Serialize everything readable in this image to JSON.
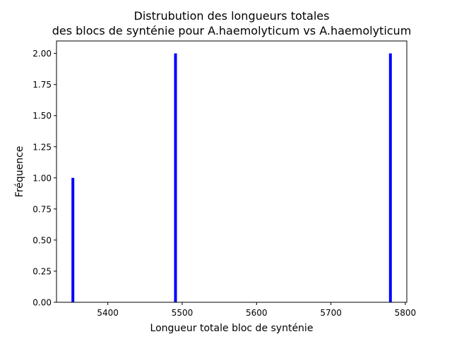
{
  "chart_data": {
    "type": "bar",
    "title_line1": "Distrubution des longueurs totales",
    "title_line2": "des blocs de synténie pour A.haemolyticum vs A.haemolyticum",
    "xlabel": "Longueur totale bloc de synténie",
    "ylabel": "Fréquence",
    "bars": [
      {
        "x": 5353,
        "y": 1
      },
      {
        "x": 5491,
        "y": 2
      },
      {
        "x": 5780,
        "y": 2
      }
    ],
    "xlim": [
      5331,
      5802
    ],
    "ylim": [
      0,
      2.1
    ],
    "xticks": [
      5400,
      5500,
      5600,
      5700,
      5800
    ],
    "xtick_labels": [
      "5400",
      "5500",
      "5600",
      "5700",
      "5800"
    ],
    "yticks": [
      0,
      0.25,
      0.5,
      0.75,
      1.0,
      1.25,
      1.5,
      1.75,
      2.0
    ],
    "ytick_labels": [
      "0.00",
      "0.25",
      "0.50",
      "0.75",
      "1.00",
      "1.25",
      "1.50",
      "1.75",
      "2.00"
    ],
    "bar_color": "#0000ff",
    "grid": false,
    "legend": "none"
  }
}
